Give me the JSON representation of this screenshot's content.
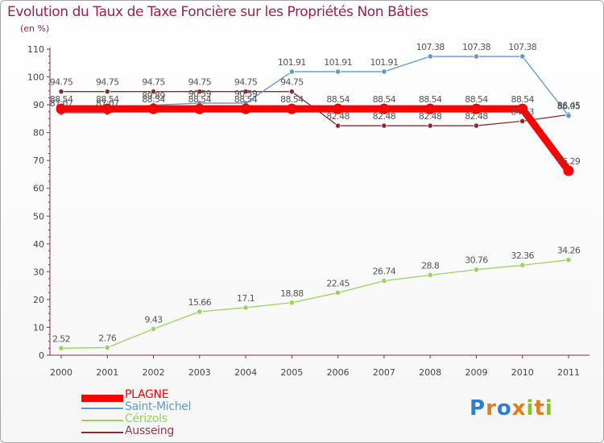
{
  "chart_data": {
    "type": "line",
    "title": "Evolution du Taux de Taxe Foncière sur les Propriétés Non Bâties",
    "ylabel": "(en %)",
    "xlabel": "",
    "ylim": [
      0,
      110
    ],
    "yticks": [
      "0",
      "10",
      "20",
      "30",
      "40",
      "50",
      "60",
      "70",
      "80",
      "90",
      "100",
      "110"
    ],
    "categories": [
      "2000",
      "2001",
      "2002",
      "2003",
      "2004",
      "2005",
      "2006",
      "2007",
      "2008",
      "2009",
      "2010",
      "2011"
    ],
    "grid": false,
    "legend_position": "bottom-left",
    "series": [
      {
        "name": "PLAGNE",
        "color": "#ff0000",
        "values": [
          88.54,
          88.54,
          88.54,
          88.54,
          88.54,
          88.54,
          88.54,
          88.54,
          88.54,
          88.54,
          88.54,
          66.29
        ],
        "labels": [
          "88.54",
          "88.54",
          "88.54",
          "88.54",
          "88.54",
          "88.54",
          "88.54",
          "88.54",
          "88.54",
          "88.54",
          "88.54",
          "66.29"
        ]
      },
      {
        "name": "Saint-Michel",
        "color": "#5b9bd5",
        "values": [
          87.07,
          87.07,
          89.89,
          90.59,
          90.59,
          101.91,
          101.91,
          101.91,
          107.38,
          107.38,
          107.38,
          86.05
        ],
        "labels": [
          "87.07",
          "87.07",
          "89.89",
          "90.59",
          "90.59",
          "101.91",
          "101.91",
          "101.91",
          "107.38",
          "107.38",
          "107.38",
          "86.05"
        ]
      },
      {
        "name": "Cérizols",
        "color": "#99d35a",
        "values": [
          2.52,
          2.76,
          9.43,
          15.66,
          17.1,
          18.88,
          22.45,
          26.74,
          28.8,
          30.76,
          32.36,
          34.26
        ],
        "labels": [
          "2.52",
          "2.76",
          "9.43",
          "15.66",
          "17.1",
          "18.88",
          "22.45",
          "26.74",
          "28.8",
          "30.76",
          "32.36",
          "34.26"
        ]
      },
      {
        "name": "Ausseing",
        "color": "#8b2d2d",
        "values": [
          94.75,
          94.75,
          94.75,
          94.75,
          94.75,
          94.75,
          82.48,
          82.48,
          82.48,
          82.48,
          84.13,
          86.45
        ],
        "labels": [
          "94.75",
          "94.75",
          "94.75",
          "94.75",
          "94.75",
          "94.75",
          "82.48",
          "82.48",
          "82.48",
          "82.48",
          "84.13",
          "86.45"
        ]
      }
    ]
  },
  "logo": {
    "text": "Proxiti",
    "letters": [
      "P",
      "r",
      "o",
      "x",
      "i",
      "t",
      "i"
    ],
    "colors": [
      "#2a7fd0",
      "#e87a1a",
      "#2a7fd0",
      "#e87a1a",
      "#8cbf26",
      "#e87a1a",
      "#8cbf26"
    ]
  }
}
